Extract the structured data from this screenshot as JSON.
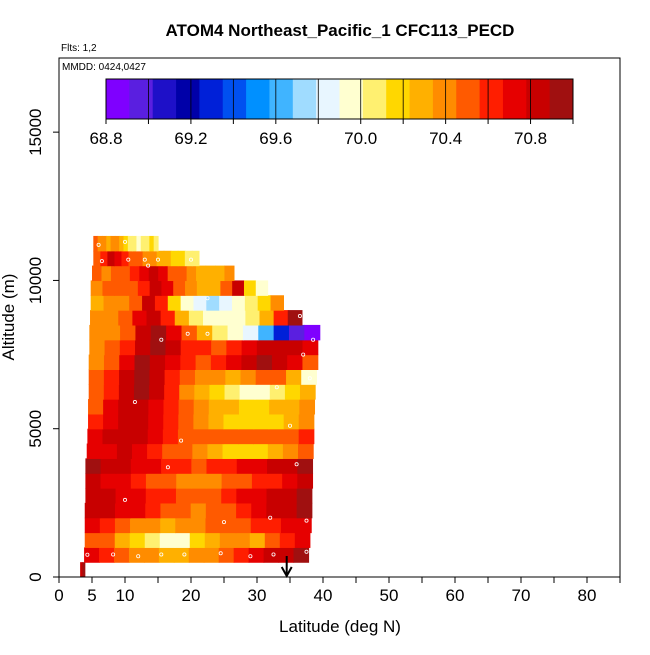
{
  "chart_data": {
    "type": "heatmap",
    "title": "ATOM4 Northeast_Pacific_1 CFC113_PECD",
    "annotations": {
      "flights": "Flts: 1,2",
      "dates": "MMDD: 0424,0427"
    },
    "xlabel": "Latitude (deg N)",
    "ylabel": "Altitude (m)",
    "xlim": [
      0,
      85
    ],
    "ylim": [
      0,
      17500
    ],
    "x_ticks": [
      0,
      5,
      10,
      20,
      30,
      40,
      50,
      60,
      70,
      80
    ],
    "y_ticks": [
      0,
      5000,
      10000,
      15000
    ],
    "colorbar": {
      "min": 68.8,
      "max": 71.0,
      "tick_values": [
        68.8,
        69.2,
        69.6,
        70.0,
        70.4,
        70.8
      ],
      "tick_labels": [
        "68.8",
        "69.2",
        "69.6",
        "70.0",
        "70.4",
        "70.8"
      ],
      "colors": [
        "#7f00ff",
        "#5a1fe0",
        "#1e10c8",
        "#0000a8",
        "#0020d8",
        "#0050f0",
        "#0090ff",
        "#40b4ff",
        "#a0dcff",
        "#e8f6ff",
        "#ffffd0",
        "#fff070",
        "#ffd700",
        "#ffb000",
        "#ff8c00",
        "#ff5a00",
        "#ff1e00",
        "#e60000",
        "#c80000",
        "#a01010"
      ]
    },
    "arrow_marker": {
      "latitude": 34.5,
      "direction": "down"
    },
    "bands": [
      {
        "alt_lo": 0,
        "alt_hi": 500,
        "lat_min": 3.2,
        "lat_max": 3.9,
        "values": [
          70.85,
          70.9
        ]
      },
      {
        "alt_lo": 500,
        "alt_hi": 1000,
        "lat_min": 3.8,
        "lat_max": 37.8,
        "values": [
          70.75,
          70.6,
          70.5,
          70.4,
          70.35,
          70.3,
          70.3,
          70.35,
          70.4,
          70.5,
          70.6,
          70.7,
          70.8,
          70.85,
          70.9
        ]
      },
      {
        "alt_lo": 1000,
        "alt_hi": 1500,
        "lat_min": 3.9,
        "lat_max": 38.0,
        "values": [
          70.55,
          70.45,
          70.3,
          70.2,
          70.05,
          69.9,
          70.0,
          70.15,
          70.25,
          70.4,
          70.35,
          70.3,
          70.45,
          70.6,
          70.7
        ]
      },
      {
        "alt_lo": 1500,
        "alt_hi": 2000,
        "lat_min": 3.9,
        "lat_max": 38.2,
        "values": [
          70.7,
          70.6,
          70.5,
          70.4,
          70.35,
          70.3,
          70.35,
          70.4,
          70.45,
          70.5,
          70.55,
          70.6,
          70.65,
          70.7,
          70.75
        ]
      },
      {
        "alt_lo": 2000,
        "alt_hi": 2500,
        "lat_min": 3.9,
        "lat_max": 38.3,
        "values": [
          70.85,
          70.8,
          70.75,
          70.7,
          70.6,
          70.5,
          70.45,
          70.4,
          70.5,
          70.55,
          70.65,
          70.75,
          70.8,
          70.85,
          70.9
        ]
      },
      {
        "alt_lo": 2500,
        "alt_hi": 3000,
        "lat_min": 4.0,
        "lat_max": 38.3,
        "values": [
          70.85,
          70.8,
          70.75,
          70.7,
          70.65,
          70.6,
          70.55,
          70.5,
          70.55,
          70.6,
          70.7,
          70.75,
          70.8,
          70.85,
          70.9
        ]
      },
      {
        "alt_lo": 3000,
        "alt_hi": 3500,
        "lat_min": 4.0,
        "lat_max": 38.4,
        "values": [
          70.8,
          70.75,
          70.7,
          70.6,
          70.5,
          70.45,
          70.4,
          70.35,
          70.4,
          70.45,
          70.5,
          70.6,
          70.65,
          70.75,
          70.8
        ]
      },
      {
        "alt_lo": 3500,
        "alt_hi": 4000,
        "lat_min": 4.0,
        "lat_max": 38.4,
        "values": [
          70.9,
          70.85,
          70.8,
          70.75,
          70.7,
          70.65,
          70.6,
          70.55,
          70.6,
          70.65,
          70.7,
          70.75,
          70.8,
          70.85,
          70.9
        ]
      },
      {
        "alt_lo": 4000,
        "alt_hi": 4500,
        "lat_min": 4.2,
        "lat_max": 38.5,
        "values": [
          70.7,
          70.75,
          70.8,
          70.75,
          70.65,
          70.55,
          70.45,
          70.35,
          70.25,
          70.2,
          70.15,
          70.2,
          70.3,
          70.4,
          70.5
        ]
      },
      {
        "alt_lo": 4500,
        "alt_hi": 5000,
        "lat_min": 4.3,
        "lat_max": 38.6,
        "values": [
          70.75,
          70.8,
          70.85,
          70.8,
          70.7,
          70.6,
          70.55,
          70.5,
          70.5,
          70.5,
          70.45,
          70.45,
          70.5,
          70.55,
          70.6
        ]
      },
      {
        "alt_lo": 5000,
        "alt_hi": 5500,
        "lat_min": 4.4,
        "lat_max": 38.6,
        "values": [
          70.65,
          70.75,
          70.85,
          70.8,
          70.7,
          70.6,
          70.45,
          70.35,
          70.25,
          70.2,
          70.15,
          70.15,
          70.2,
          70.3,
          70.35
        ]
      },
      {
        "alt_lo": 5500,
        "alt_hi": 6000,
        "lat_min": 4.4,
        "lat_max": 38.7,
        "values": [
          70.55,
          70.7,
          70.85,
          70.85,
          70.75,
          70.6,
          70.5,
          70.4,
          70.3,
          70.25,
          70.2,
          70.2,
          70.25,
          70.3,
          70.35
        ]
      },
      {
        "alt_lo": 6000,
        "alt_hi": 6500,
        "lat_min": 4.5,
        "lat_max": 38.8,
        "values": [
          70.5,
          70.65,
          70.85,
          70.9,
          70.8,
          70.6,
          70.4,
          70.3,
          70.2,
          70.1,
          70.0,
          69.95,
          70.05,
          70.15,
          70.3
        ]
      },
      {
        "alt_lo": 6500,
        "alt_hi": 7000,
        "lat_min": 4.5,
        "lat_max": 39.0,
        "values": [
          70.45,
          70.6,
          70.8,
          70.9,
          70.8,
          70.6,
          70.45,
          70.4,
          70.35,
          70.3,
          70.35,
          70.45,
          70.5,
          70.3,
          70.0
        ]
      },
      {
        "alt_lo": 7000,
        "alt_hi": 7500,
        "lat_min": 4.5,
        "lat_max": 39.2,
        "values": [
          70.4,
          70.5,
          70.7,
          70.9,
          70.85,
          70.7,
          70.6,
          70.55,
          70.6,
          70.7,
          70.8,
          70.9,
          70.85,
          70.7,
          70.5
        ]
      },
      {
        "alt_lo": 7500,
        "alt_hi": 8000,
        "lat_min": 4.6,
        "lat_max": 39.2,
        "values": [
          70.4,
          70.45,
          70.6,
          70.85,
          70.9,
          70.8,
          70.65,
          70.6,
          70.55,
          70.6,
          70.7,
          70.8,
          70.85,
          70.8,
          70.75
        ]
      },
      {
        "alt_lo": 8000,
        "alt_hi": 8500,
        "lat_min": 4.6,
        "lat_max": 39.5,
        "values": [
          70.35,
          70.4,
          70.5,
          70.8,
          70.9,
          70.75,
          70.5,
          70.3,
          70.1,
          69.95,
          69.8,
          69.6,
          69.3,
          69.0,
          68.85
        ]
      },
      {
        "alt_lo": 8500,
        "alt_hi": 9000,
        "lat_min": 4.7,
        "lat_max": 36.8,
        "values": [
          70.35,
          70.4,
          70.45,
          70.7,
          70.85,
          70.6,
          70.3,
          70.1,
          70.0,
          69.95,
          70.0,
          70.1,
          70.3,
          70.6,
          70.9
        ]
      },
      {
        "alt_lo": 9000,
        "alt_hi": 9500,
        "lat_min": 4.8,
        "lat_max": 34.0,
        "values": [
          70.3,
          70.35,
          70.4,
          70.55,
          70.8,
          70.6,
          70.2,
          69.9,
          69.8,
          69.75,
          69.8,
          69.9,
          70.05,
          70.2,
          70.35
        ]
      },
      {
        "alt_lo": 9500,
        "alt_hi": 10000,
        "lat_min": 4.8,
        "lat_max": 31.6,
        "values": [
          70.4,
          70.45,
          70.5,
          70.55,
          70.65,
          70.85,
          70.7,
          70.5,
          70.35,
          70.25,
          70.3,
          70.5,
          70.8,
          70.2,
          69.95
        ]
      },
      {
        "alt_lo": 10000,
        "alt_hi": 10500,
        "lat_min": 5.0,
        "lat_max": 26.5,
        "values": [
          70.45,
          70.4,
          70.45,
          70.5,
          70.6,
          70.7,
          70.8,
          70.7,
          70.55,
          70.45,
          70.35,
          70.3,
          70.25,
          70.3,
          70.35
        ]
      },
      {
        "alt_lo": 10500,
        "alt_hi": 11000,
        "lat_min": 5.2,
        "lat_max": 21.2,
        "values": [
          70.55,
          70.65,
          70.8,
          70.7,
          70.6,
          70.5,
          70.45,
          70.4,
          70.35,
          70.3,
          70.25,
          70.2,
          70.15,
          70.1,
          70.05
        ]
      },
      {
        "alt_lo": 11000,
        "alt_hi": 11500,
        "lat_min": 5.2,
        "lat_max": 15.0,
        "values": [
          70.45,
          70.4,
          70.35,
          70.3,
          70.35,
          70.4,
          70.3,
          70.2,
          70.1,
          70.05,
          70.0,
          70.05,
          70.1,
          70.15,
          70.1
        ]
      }
    ],
    "sample_points": [
      [
        4.3,
        750
      ],
      [
        8.2,
        760
      ],
      [
        12.0,
        700
      ],
      [
        15.5,
        760
      ],
      [
        19.0,
        760
      ],
      [
        24.5,
        800
      ],
      [
        29.0,
        700
      ],
      [
        32.5,
        760
      ],
      [
        37.5,
        850
      ],
      [
        10.0,
        2600
      ],
      [
        25.0,
        1850
      ],
      [
        32.0,
        2000
      ],
      [
        37.5,
        1900
      ],
      [
        16.5,
        3700
      ],
      [
        36.0,
        3800
      ],
      [
        18.5,
        4600
      ],
      [
        35.0,
        5100
      ],
      [
        11.5,
        5900
      ],
      [
        33.0,
        6400
      ],
      [
        38.0,
        6700
      ],
      [
        37.0,
        7500
      ],
      [
        19.5,
        8200
      ],
      [
        22.5,
        8200
      ],
      [
        15.5,
        8000
      ],
      [
        38.5,
        8000
      ],
      [
        36.5,
        8800
      ],
      [
        22.5,
        9400
      ],
      [
        13.5,
        10500
      ],
      [
        20.0,
        10700
      ],
      [
        6.5,
        10650
      ],
      [
        10.5,
        10700
      ],
      [
        13.0,
        10700
      ],
      [
        15.0,
        10700
      ],
      [
        10.0,
        11300
      ],
      [
        6.0,
        11200
      ]
    ]
  }
}
